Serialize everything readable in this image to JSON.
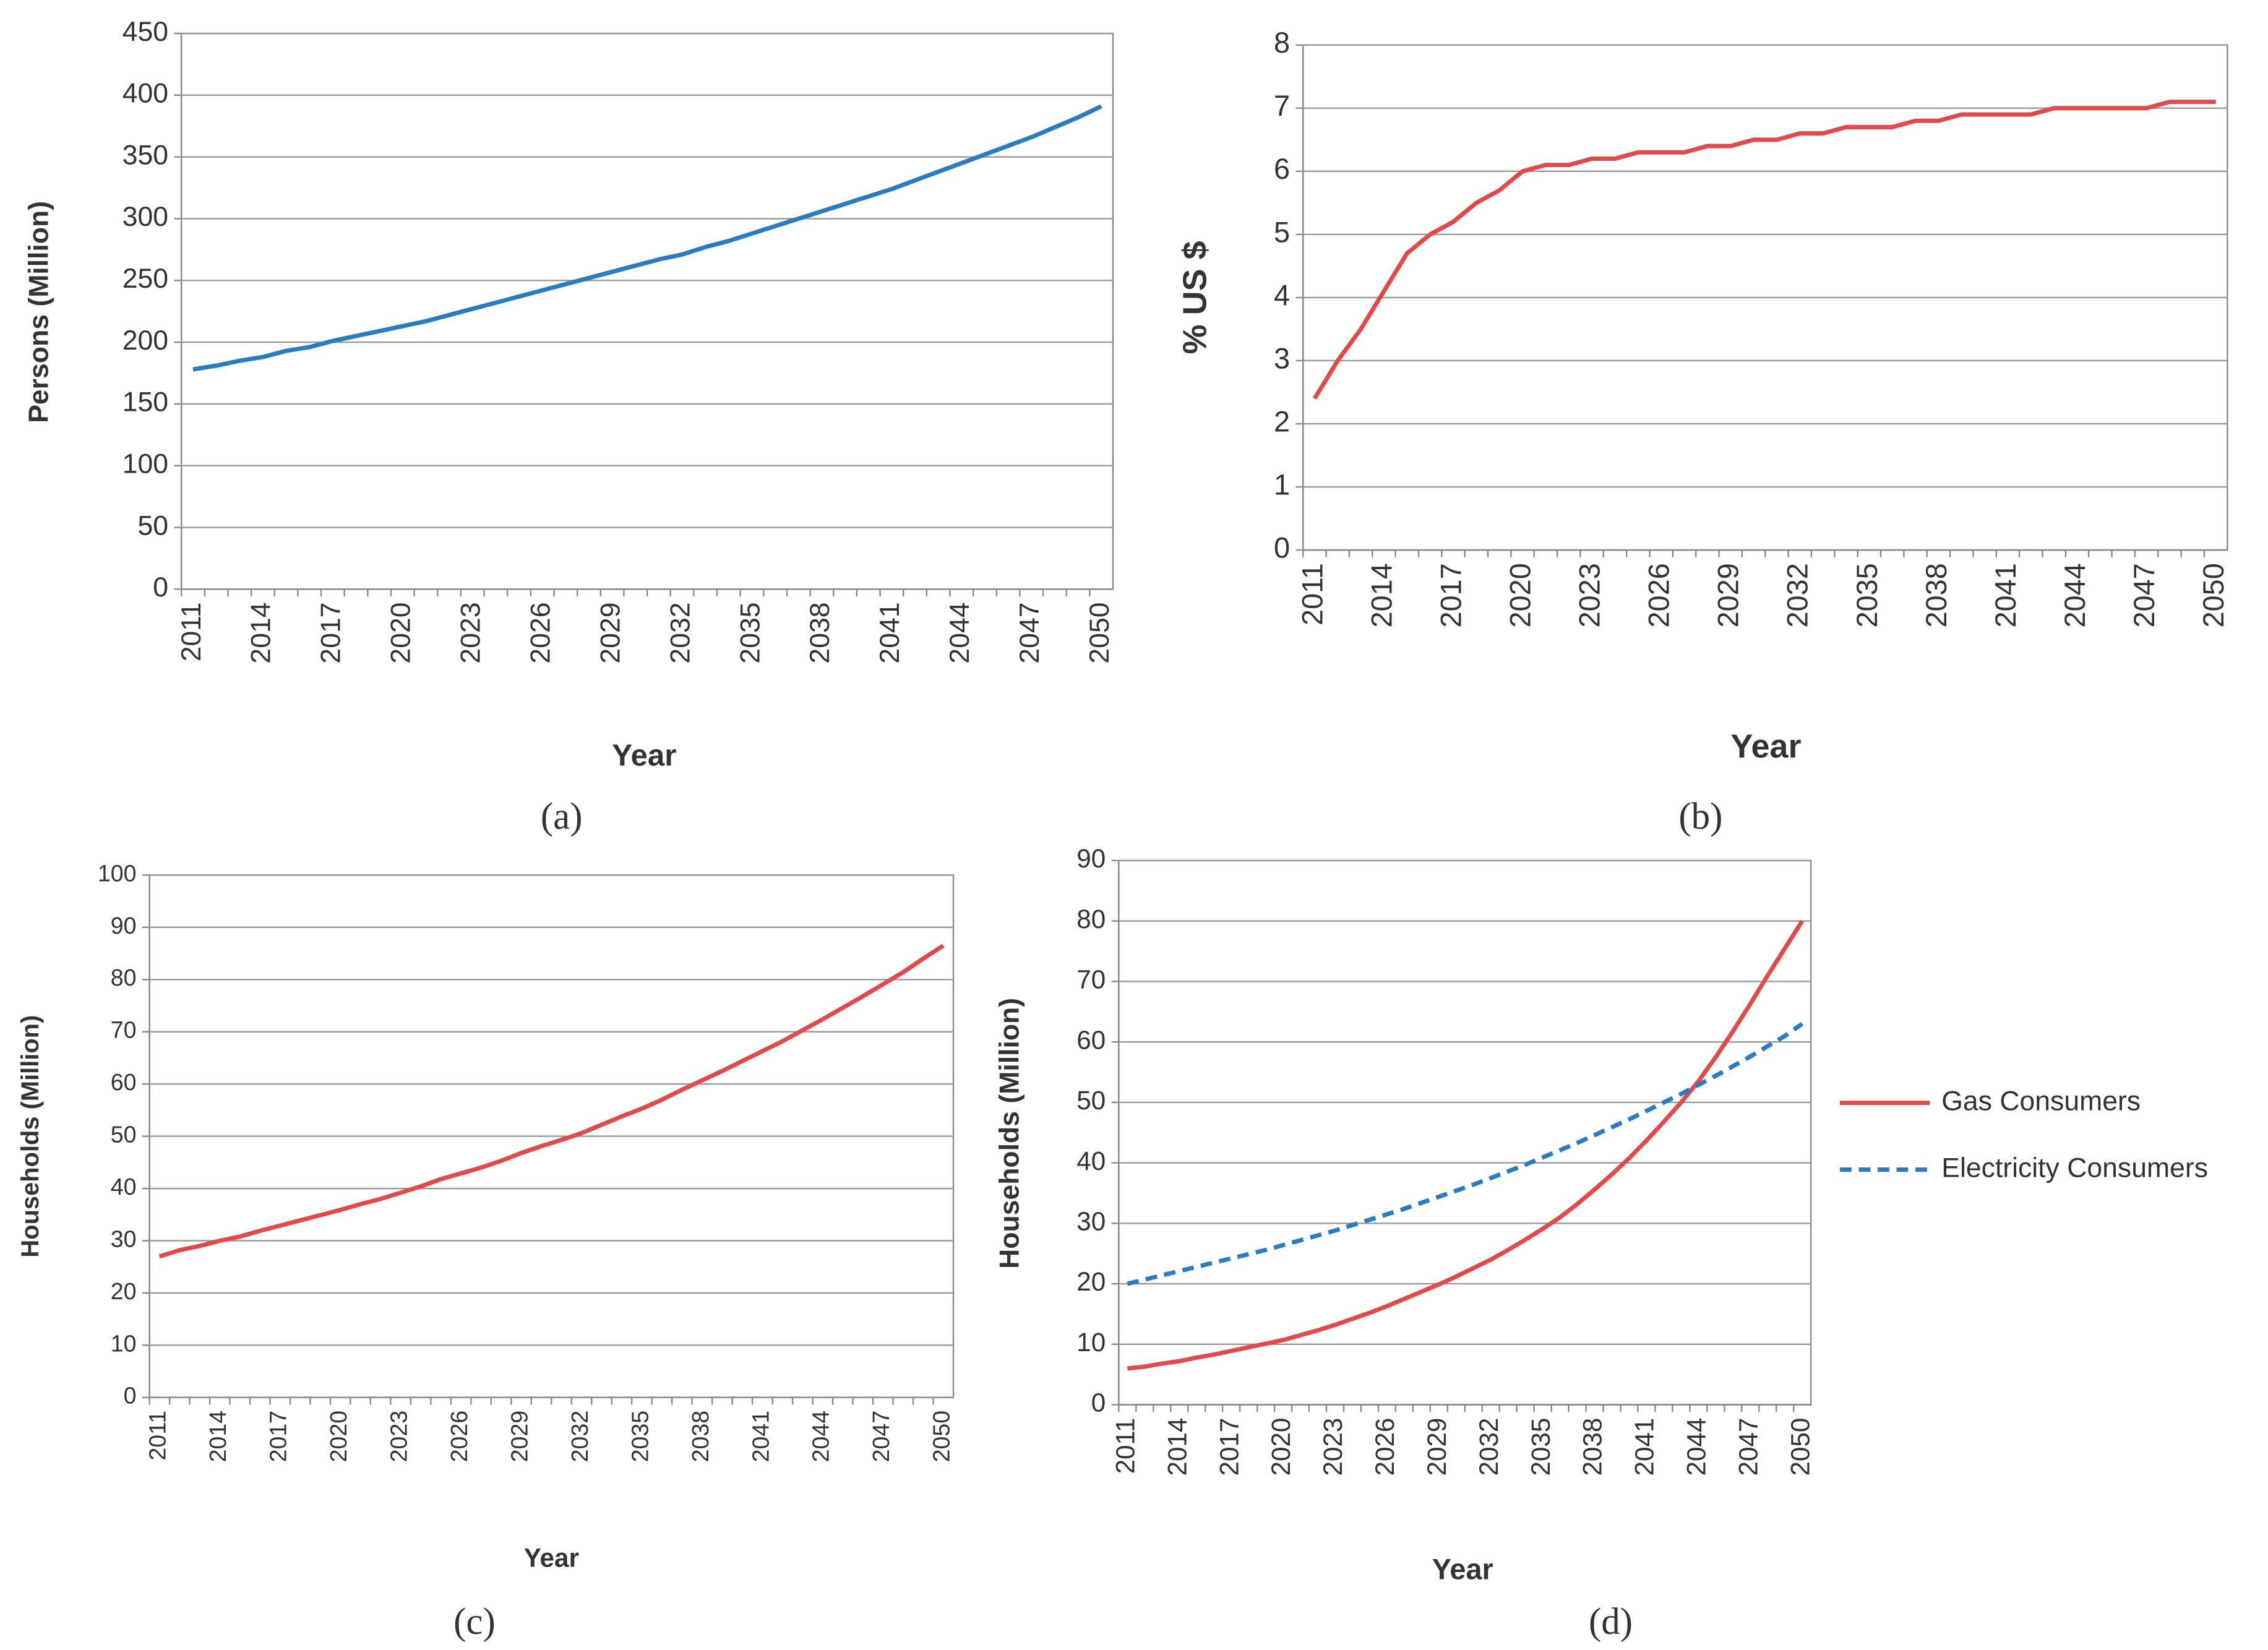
{
  "chart_data": [
    {
      "type": "line",
      "ylabel": "Persons (Million)",
      "xlabel": "Year",
      "panel_label": "(a)",
      "color": "#2a7bbf",
      "grid": true,
      "categories": [
        "2011",
        null,
        null,
        "2014",
        null,
        null,
        "2017",
        null,
        null,
        "2020",
        null,
        null,
        "2023",
        null,
        null,
        "2026",
        null,
        null,
        "2029",
        null,
        null,
        "2032",
        null,
        null,
        "2035",
        null,
        null,
        "2038",
        null,
        null,
        "2041",
        null,
        null,
        "2044",
        null,
        null,
        "2047",
        null,
        null,
        "2050"
      ],
      "values": [
        178,
        181,
        185,
        188,
        193,
        196,
        201,
        205,
        209,
        213,
        217,
        222,
        227,
        232,
        237,
        242,
        247,
        252,
        257,
        262,
        267,
        271,
        277,
        282,
        288,
        294,
        300,
        306,
        312,
        318,
        324,
        331,
        338,
        345,
        352,
        359,
        366,
        374,
        382,
        391
      ],
      "ylim": [
        0,
        450
      ],
      "yticks": [
        0,
        50,
        100,
        150,
        200,
        250,
        300,
        350,
        400,
        450
      ]
    },
    {
      "type": "line",
      "ylabel": "% US $",
      "xlabel": "Year",
      "panel_label": "(b)",
      "color": "#e04a4a",
      "grid": true,
      "categories": [
        "2011",
        null,
        null,
        "2014",
        null,
        null,
        "2017",
        null,
        null,
        "2020",
        null,
        null,
        "2023",
        null,
        null,
        "2026",
        null,
        null,
        "2029",
        null,
        null,
        "2032",
        null,
        null,
        "2035",
        null,
        null,
        "2038",
        null,
        null,
        "2041",
        null,
        null,
        "2044",
        null,
        null,
        "2047",
        null,
        null,
        "2050"
      ],
      "values": [
        2.4,
        3.0,
        3.5,
        4.1,
        4.7,
        5.0,
        5.2,
        5.5,
        5.7,
        6.0,
        6.1,
        6.1,
        6.2,
        6.2,
        6.3,
        6.3,
        6.3,
        6.4,
        6.4,
        6.5,
        6.5,
        6.6,
        6.6,
        6.7,
        6.7,
        6.7,
        6.8,
        6.8,
        6.9,
        6.9,
        6.9,
        6.9,
        7.0,
        7.0,
        7.0,
        7.0,
        7.0,
        7.1,
        7.1,
        7.1
      ],
      "ylim": [
        0,
        8
      ],
      "yticks": [
        0,
        1,
        2,
        3,
        4,
        5,
        6,
        7,
        8
      ]
    },
    {
      "type": "line",
      "ylabel": "Households (Million)",
      "xlabel": "Year",
      "panel_label": "(c)",
      "color": "#e04a4a",
      "grid": true,
      "categories": [
        "2011",
        null,
        null,
        "2014",
        null,
        null,
        "2017",
        null,
        null,
        "2020",
        null,
        null,
        "2023",
        null,
        null,
        "2026",
        null,
        null,
        "2029",
        null,
        null,
        "2032",
        null,
        null,
        "2035",
        null,
        null,
        "2038",
        null,
        null,
        "2041",
        null,
        null,
        "2044",
        null,
        null,
        "2047",
        null,
        null,
        "2050"
      ],
      "values": [
        27.0,
        28.2,
        29.0,
        30.0,
        30.8,
        31.9,
        32.9,
        33.9,
        34.9,
        35.9,
        37.0,
        38.0,
        39.2,
        40.4,
        41.8,
        42.9,
        44.0,
        45.3,
        46.8,
        48.1,
        49.3,
        50.6,
        52.2,
        53.8,
        55.3,
        57.0,
        58.9,
        60.7,
        62.5,
        64.4,
        66.3,
        68.2,
        70.3,
        72.4,
        74.6,
        76.8,
        79.1,
        81.4,
        84.0,
        86.5
      ],
      "ylim": [
        0,
        100
      ],
      "yticks": [
        0,
        10,
        20,
        30,
        40,
        50,
        60,
        70,
        80,
        90,
        100
      ]
    },
    {
      "type": "line",
      "ylabel": "Households (Million)",
      "xlabel": "Year",
      "panel_label": "(d)",
      "grid": true,
      "legend": "right",
      "categories": [
        "2011",
        null,
        null,
        "2014",
        null,
        null,
        "2017",
        null,
        null,
        "2020",
        null,
        null,
        "2023",
        null,
        null,
        "2026",
        null,
        null,
        "2029",
        null,
        null,
        "2032",
        null,
        null,
        "2035",
        null,
        null,
        "2038",
        null,
        null,
        "2041",
        null,
        null,
        "2044",
        null,
        null,
        "2047",
        null,
        null,
        "2050"
      ],
      "series": [
        {
          "name": "Gas Consumers",
          "color": "#e04a4a",
          "dash": false,
          "values": [
            6.0,
            6.3,
            6.8,
            7.2,
            7.8,
            8.3,
            8.9,
            9.5,
            10.1,
            10.7,
            11.5,
            12.3,
            13.2,
            14.2,
            15.2,
            16.3,
            17.5,
            18.7,
            19.9,
            21.2,
            22.6,
            24.0,
            25.6,
            27.3,
            29.1,
            31.0,
            33.2,
            35.6,
            38.1,
            40.8,
            43.7,
            46.8,
            50.0,
            53.5,
            57.5,
            61.8,
            66.3,
            71.0,
            75.5,
            80.0
          ]
        },
        {
          "name": "Electricity Consumers",
          "color": "#2a7bbf",
          "dash": true,
          "values": [
            20.0,
            20.7,
            21.4,
            22.1,
            22.8,
            23.5,
            24.2,
            24.9,
            25.6,
            26.4,
            27.2,
            28.0,
            28.8,
            29.7,
            30.6,
            31.5,
            32.4,
            33.4,
            34.4,
            35.4,
            36.4,
            37.5,
            38.6,
            39.7,
            40.9,
            42.1,
            43.3,
            44.6,
            45.9,
            47.2,
            48.6,
            50.0,
            51.4,
            52.9,
            54.4,
            56.0,
            57.6,
            59.3,
            61.0,
            63.0
          ]
        }
      ],
      "ylim": [
        0,
        90
      ],
      "yticks": [
        0,
        10,
        20,
        30,
        40,
        50,
        60,
        70,
        80,
        90
      ]
    }
  ]
}
